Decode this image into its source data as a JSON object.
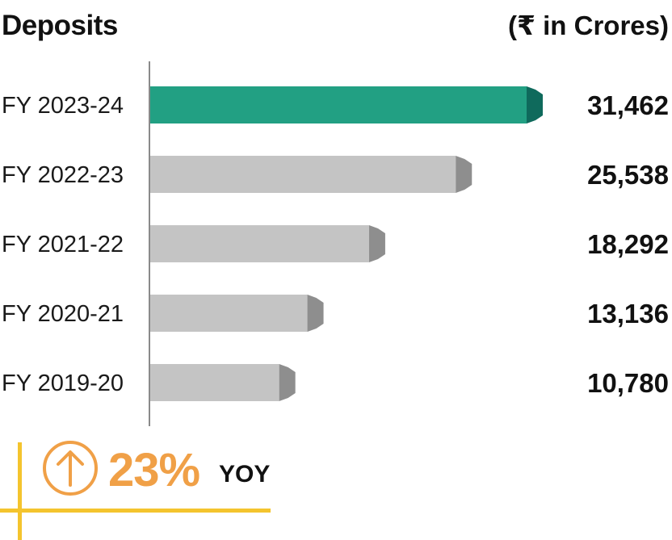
{
  "chart_data": {
    "type": "bar",
    "orientation": "horizontal",
    "title": "Deposits",
    "unit_label": "(₹ in Crores)",
    "categories": [
      "FY 2023-24",
      "FY 2022-23",
      "FY 2021-22",
      "FY 2020-21",
      "FY 2019-20"
    ],
    "values": [
      31462,
      25538,
      18292,
      13136,
      10780
    ],
    "value_labels": [
      "31,462",
      "25,538",
      "18,292",
      "13,136",
      "10,780"
    ],
    "highlight_index": 0,
    "xlim": [
      0,
      36000
    ],
    "grid": false,
    "legend": "none"
  },
  "colors": {
    "highlight_front": "#22A083",
    "highlight_cap": "#0F6A5C",
    "bar_front": "#C4C4C4",
    "bar_cap": "#8E8E8E",
    "axis": "#8A8A8A",
    "accent_orange": "#F0A047",
    "accent_yellow": "#F4C42E"
  },
  "kpi": {
    "value": "23%",
    "suffix": "YOY",
    "icon": "arrow-up-circle-icon"
  }
}
